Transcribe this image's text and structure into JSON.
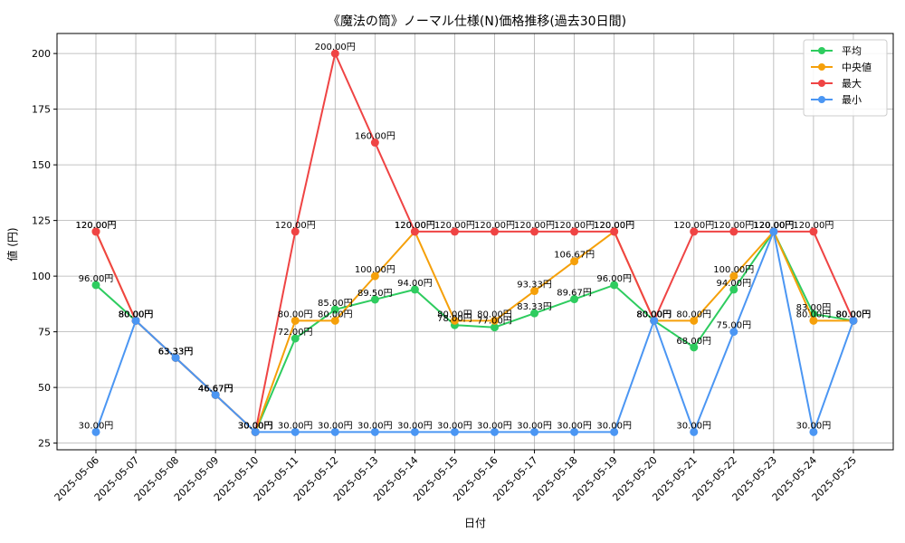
{
  "chart_data": {
    "type": "line",
    "title": "《魔法の筒》ノーマル仕様(N)価格推移(過去30日間)",
    "xlabel": "日付",
    "ylabel": "値 (円)",
    "ylim": [
      22,
      209
    ],
    "yticks": [
      25,
      50,
      75,
      100,
      125,
      150,
      175,
      200
    ],
    "grid": true,
    "legend_position": "top-right",
    "categories": [
      "2025-05-06",
      "2025-05-07",
      "2025-05-08",
      "2025-05-09",
      "2025-05-10",
      "2025-05-11",
      "2025-05-12",
      "2025-05-13",
      "2025-05-14",
      "2025-05-15",
      "2025-05-16",
      "2025-05-17",
      "2025-05-18",
      "2025-05-19",
      "2025-05-20",
      "2025-05-21",
      "2025-05-22",
      "2025-05-23",
      "2025-05-24",
      "2025-05-25"
    ],
    "series": [
      {
        "name": "平均",
        "color": "#2ecc5f",
        "values": [
          96,
          80,
          63.33,
          46.67,
          30,
          72,
          85,
          89.5,
          94,
          78,
          77,
          83.33,
          89.67,
          96,
          80,
          68,
          94,
          120,
          83,
          80
        ],
        "labels": [
          "96.00円",
          "80.00円",
          "63.33円",
          "46.67円",
          "30.00円",
          "72.00円",
          "85.00円",
          "89.50円",
          "94.00円",
          "78.00円",
          "77.00円",
          "83.33円",
          "89.67円",
          "96.00円",
          "80.00円",
          "68.00円",
          "94.00円",
          "120.00円",
          "83.00円",
          "80.00円"
        ]
      },
      {
        "name": "中央値",
        "color": "#f5a00a",
        "values": [
          120,
          80,
          63.33,
          46.67,
          30,
          80,
          80,
          100,
          120,
          80,
          80,
          93.33,
          106.67,
          120,
          80,
          80,
          100,
          120,
          80,
          80
        ],
        "labels": [
          "120.00円",
          "80.00円",
          "63.33円",
          "46.67円",
          "30.00円",
          "80.00円",
          "80.00円",
          "100.00円",
          "120.00円",
          "80.00円",
          "80.00円",
          "93.33円",
          "106.67円",
          "120.00円",
          "80.00円",
          "80.00円",
          "100.00円",
          "120.00円",
          "80.00円",
          "80.00円"
        ]
      },
      {
        "name": "最大",
        "color": "#ef4444",
        "values": [
          120,
          80,
          63.33,
          46.67,
          30,
          120,
          200,
          160,
          120,
          120,
          120,
          120,
          120,
          120,
          80,
          120,
          120,
          120,
          120,
          80
        ],
        "labels": [
          "120.00円",
          "80.00円",
          "63.33円",
          "46.67円",
          "30.00円",
          "120.00円",
          "200.00円",
          "160.00円",
          "120.00円",
          "120.00円",
          "120.00円",
          "120.00円",
          "120.00円",
          "120.00円",
          "80.00円",
          "120.00円",
          "120.00円",
          "120.00円",
          "120.00円",
          "80.00円"
        ]
      },
      {
        "name": "最小",
        "color": "#4b96f3",
        "values": [
          30,
          80,
          63.33,
          46.67,
          30,
          30,
          30,
          30,
          30,
          30,
          30,
          30,
          30,
          30,
          80,
          30,
          75,
          120,
          30,
          80
        ],
        "labels": [
          "30.00円",
          "80.00円",
          "63.33円",
          "46.67円",
          "30.00円",
          "30.00円",
          "30.00円",
          "30.00円",
          "30.00円",
          "30.00円",
          "30.00円",
          "30.00円",
          "30.00円",
          "30.00円",
          "80.00円",
          "30.00円",
          "75.00円",
          "120.00円",
          "30.00円",
          "80.00円"
        ]
      }
    ]
  }
}
